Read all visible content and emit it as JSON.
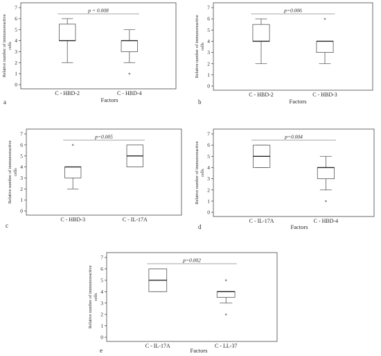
{
  "chart_data": [
    {
      "type": "boxplot",
      "panel_letter": "a",
      "xlabel": "Factors",
      "ylabel": [
        "Relative number of immunoreactive",
        "cells"
      ],
      "ylim": [
        0,
        7
      ],
      "yticks": [
        0,
        1,
        2,
        3,
        4,
        5,
        6,
        7
      ],
      "grid": false,
      "pvalue_label": "p = 0.008",
      "categories": [
        "C - HBD-2",
        "C - HBD-4"
      ],
      "boxes": [
        {
          "min": 2,
          "q1": 4,
          "median": 4,
          "q3": 5.5,
          "max": 6,
          "outliers": []
        },
        {
          "min": 2,
          "q1": 3,
          "median": 4,
          "q3": 4,
          "max": 5,
          "outliers": [
            1
          ]
        }
      ]
    },
    {
      "type": "boxplot",
      "panel_letter": "b",
      "xlabel": "Factors",
      "ylabel": [
        "Relative number of immunoreactive",
        "cells"
      ],
      "ylim": [
        0,
        7
      ],
      "yticks": [
        0,
        1,
        2,
        3,
        4,
        5,
        6,
        7
      ],
      "grid": false,
      "pvalue_label": "p=0.006",
      "categories": [
        "C - HBD-2",
        "C - HBD-3"
      ],
      "boxes": [
        {
          "min": 2,
          "q1": 4,
          "median": 4,
          "q3": 5.5,
          "max": 6,
          "outliers": []
        },
        {
          "min": 2,
          "q1": 3,
          "median": 4,
          "q3": 4,
          "max": 4,
          "outliers": [
            6
          ]
        }
      ]
    },
    {
      "type": "boxplot",
      "panel_letter": "c",
      "xlabel": "",
      "ylabel": [
        "Relative number of immunoreactive",
        "cells"
      ],
      "ylim": [
        0,
        7
      ],
      "yticks": [
        0,
        1,
        2,
        3,
        4,
        5,
        6,
        7
      ],
      "grid": false,
      "pvalue_label": "p=0.005",
      "categories": [
        "C - HBD-3",
        "C - IL-17A"
      ],
      "boxes": [
        {
          "min": 2,
          "q1": 3,
          "median": 4,
          "q3": 4,
          "max": 4,
          "outliers": [
            6
          ]
        },
        {
          "min": 4,
          "q1": 4,
          "median": 5,
          "q3": 6,
          "max": 6,
          "outliers": []
        }
      ]
    },
    {
      "type": "boxplot",
      "panel_letter": "d",
      "xlabel": "Factors",
      "ylabel": [
        "Relative number of immunoreactive",
        "cells"
      ],
      "ylim": [
        0,
        7
      ],
      "yticks": [
        0,
        1,
        2,
        3,
        4,
        5,
        6,
        7
      ],
      "grid": false,
      "pvalue_label": "p=0.004",
      "categories": [
        "C - IL-17A",
        "C - HBD-4"
      ],
      "boxes": [
        {
          "min": 4,
          "q1": 4,
          "median": 5,
          "q3": 6,
          "max": 6,
          "outliers": []
        },
        {
          "min": 2,
          "q1": 3,
          "median": 4,
          "q3": 4,
          "max": 5,
          "outliers": [
            1
          ]
        }
      ]
    },
    {
      "type": "boxplot",
      "panel_letter": "e",
      "xlabel": "Factors",
      "ylabel": [
        "Relative number of immunoreactive",
        "cells"
      ],
      "ylim": [
        0,
        7
      ],
      "yticks": [
        0,
        1,
        2,
        3,
        4,
        5,
        6,
        7
      ],
      "grid": false,
      "pvalue_label": "p=0.002",
      "categories": [
        "C - IL-17A",
        "C - LL-37"
      ],
      "boxes": [
        {
          "min": 4,
          "q1": 4,
          "median": 5,
          "q3": 6,
          "max": 6,
          "outliers": []
        },
        {
          "min": 3,
          "q1": 3.5,
          "median": 4,
          "q3": 4,
          "max": 4,
          "outliers": [
            5,
            2
          ]
        }
      ]
    }
  ]
}
